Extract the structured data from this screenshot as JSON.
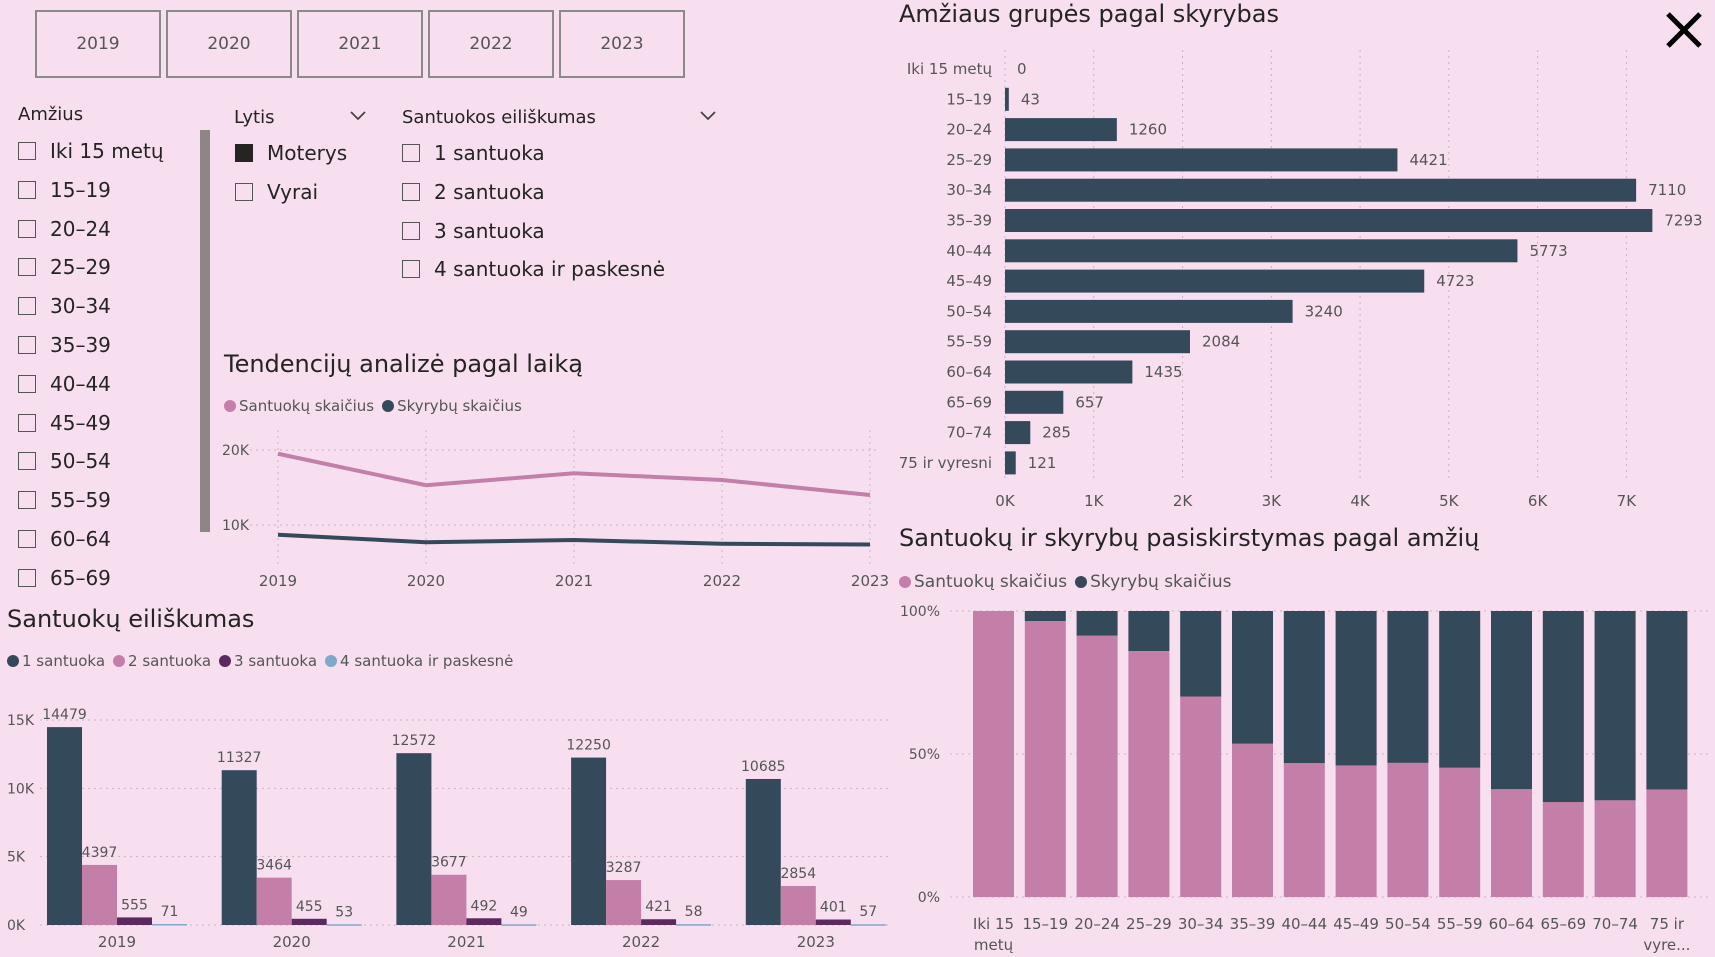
{
  "colors": {
    "pink": "#c47fa8",
    "dark": "#34495a",
    "purple": "#5c2a5e",
    "light_blue": "#7fa8cc",
    "background": "#f8dff0"
  },
  "year_slicer": [
    "2019",
    "2020",
    "2021",
    "2022",
    "2023"
  ],
  "close_icon": "close-icon",
  "filters": {
    "age": {
      "title": "Amžius",
      "items": [
        "Iki 15 metų",
        "15–19",
        "20–24",
        "25–29",
        "30–34",
        "35–39",
        "40–44",
        "45–49",
        "50–54",
        "55–59",
        "60–64",
        "65–69"
      ]
    },
    "gender": {
      "title": "Lytis",
      "items": [
        {
          "label": "Moterys",
          "checked": true
        },
        {
          "label": "Vyrai",
          "checked": false
        }
      ]
    },
    "marriage_order": {
      "title": "Santuokos eiliškumas",
      "items": [
        "1 santuoka",
        "2 santuoka",
        "3 santuoka",
        "4 santuoka ir paskesnė"
      ]
    }
  },
  "trend": {
    "chart_data": {
      "type": "line",
      "title": "Tendencijų analizė pagal laiką",
      "x": [
        "2019",
        "2020",
        "2021",
        "2022",
        "2023"
      ],
      "series": [
        {
          "name": "Santuokų skaičius",
          "values": [
            19500,
            15300,
            16900,
            16000,
            14000
          ]
        },
        {
          "name": "Skyrybų skaičius",
          "values": [
            8700,
            7700,
            8000,
            7500,
            7400
          ]
        }
      ],
      "y_ticks": [
        "20K",
        "10K"
      ],
      "y_tick_values": [
        20000,
        10000
      ],
      "ylim": [
        4000,
        22000
      ]
    }
  },
  "divorce_age": {
    "chart_data": {
      "type": "bar",
      "orientation": "horizontal",
      "title": "Amžiaus grupės pagal skyrybas",
      "categories": [
        "Iki 15 metų",
        "15–19",
        "20–24",
        "25–29",
        "30–34",
        "35–39",
        "40–44",
        "45–49",
        "50–54",
        "55–59",
        "60–64",
        "65–69",
        "70–74",
        "75 ir vyresni"
      ],
      "values": [
        0,
        43,
        1260,
        4421,
        7110,
        7293,
        5773,
        4723,
        3240,
        2084,
        1435,
        657,
        285,
        121
      ],
      "x_ticks": [
        "0K",
        "1K",
        "2K",
        "3K",
        "4K",
        "5K",
        "6K",
        "7K"
      ],
      "xlim": [
        0,
        7300
      ]
    }
  },
  "marriage_order_chart": {
    "chart_data": {
      "type": "bar",
      "title": "Santuokų eiliškumas",
      "categories": [
        "2019",
        "2020",
        "2021",
        "2022",
        "2023"
      ],
      "series": [
        {
          "name": "1 santuoka",
          "values": [
            14479,
            11327,
            12572,
            12250,
            10685
          ]
        },
        {
          "name": "2 santuoka",
          "values": [
            4397,
            3464,
            3677,
            3287,
            2854
          ]
        },
        {
          "name": "3 santuoka",
          "values": [
            555,
            455,
            492,
            421,
            401
          ]
        },
        {
          "name": "4 santuoka ir paskesnė",
          "values": [
            71,
            53,
            49,
            58,
            57
          ]
        }
      ],
      "y_ticks": [
        "15K",
        "10K",
        "5K",
        "0K"
      ],
      "y_tick_values": [
        15000,
        10000,
        5000,
        0
      ],
      "ylim": [
        0,
        15000
      ]
    }
  },
  "distribution": {
    "chart_data": {
      "type": "bar",
      "stacked": "100%",
      "title": "Santuokų ir skyrybų pasiskirstymas pagal amžių",
      "categories": [
        "Iki 15 metų",
        "15–19",
        "20–24",
        "25–29",
        "30–34",
        "35–39",
        "40–44",
        "45–49",
        "50–54",
        "55–59",
        "60–64",
        "65–69",
        "70–74",
        "75 ir vyre..."
      ],
      "series": [
        {
          "name": "Santuokų skaičius",
          "values": [
            100,
            96.5,
            91.4,
            86.0,
            70.1,
            53.6,
            46.8,
            46.0,
            46.9,
            45.2,
            37.7,
            33.2,
            33.8,
            37.6
          ]
        },
        {
          "name": "Skyrybų skaičius",
          "values": [
            0,
            3.5,
            8.6,
            14.0,
            29.9,
            46.4,
            53.2,
            54.0,
            53.1,
            54.8,
            62.3,
            66.8,
            66.2,
            62.4
          ]
        }
      ],
      "y_ticks": [
        "100%",
        "50%",
        "0%"
      ],
      "y_tick_values": [
        100,
        50,
        0
      ],
      "ylim": [
        0,
        100
      ]
    }
  }
}
